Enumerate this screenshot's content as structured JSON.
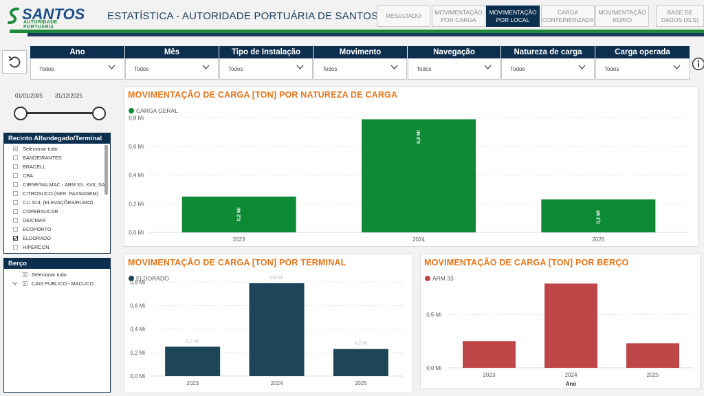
{
  "header": {
    "logo_text": "SANTOS",
    "logo_sub": "AUTORIDADE PORTUÁRIA",
    "title": "ESTATÍSTICA - AUTORIDADE PORTUÁRIA DE SANTOS",
    "nav": [
      {
        "label": "RESULTADO",
        "active": false
      },
      {
        "label": "MOVIMENTAÇÃO POR CARGA",
        "active": false
      },
      {
        "label": "MOVIMENTAÇÃO POR LOCAL",
        "active": true
      },
      {
        "label": "CARGA CONTEINERIZADA",
        "active": false
      },
      {
        "label": "MOVIMENTAÇÃO RO/RO",
        "active": false
      },
      {
        "label": "BASE DE DADOS (XLS)",
        "active": false
      }
    ]
  },
  "filters": [
    {
      "label": "Ano",
      "value": "Todos"
    },
    {
      "label": "Mês",
      "value": "Todos"
    },
    {
      "label": "Tipo de Instalação",
      "value": "Todos"
    },
    {
      "label": "Movimento",
      "value": "Todos"
    },
    {
      "label": "Navegação",
      "value": "Todos"
    },
    {
      "label": "Natureza de carga",
      "value": "Todos"
    },
    {
      "label": "Carga operada",
      "value": "Todos"
    }
  ],
  "date_range": {
    "start": "01/01/2005",
    "end": "31/12/2025"
  },
  "terminal_list": {
    "title": "Recinto Alfandegado/Terminal",
    "items": [
      {
        "label": "Selecionar tudo",
        "state": "partial"
      },
      {
        "label": "BANDEIRANTES",
        "state": "unchecked"
      },
      {
        "label": "BRACELL",
        "state": "unchecked"
      },
      {
        "label": "CBA",
        "state": "unchecked"
      },
      {
        "label": "CIRNE/SALMAC - ARM XII, XVII, SA",
        "state": "unchecked"
      },
      {
        "label": "CITROSUCO (SER. PASSAGEM)",
        "state": "unchecked"
      },
      {
        "label": "CLI SUL (ELEVAÇÕES/RUMO)",
        "state": "unchecked"
      },
      {
        "label": "COPERSUCAR",
        "state": "unchecked"
      },
      {
        "label": "DEICMAR",
        "state": "unchecked"
      },
      {
        "label": "ECOPORTO",
        "state": "unchecked"
      },
      {
        "label": "ELDORADO",
        "state": "checked"
      },
      {
        "label": "HIPERCON",
        "state": "unchecked"
      }
    ]
  },
  "berco_list": {
    "title": "Berço",
    "items": [
      {
        "label": "Selecionar tudo",
        "state": "partial",
        "expand": false
      },
      {
        "label": "CAIS PÚBLICO - MACUCO",
        "state": "partial",
        "expand": true
      }
    ]
  },
  "charts": {
    "natureza": {
      "title": "MOVIMENTAÇÃO DE CARGA [TON] POR NATUREZA DE CARGA",
      "legend": "CARGA GERAL",
      "color": "#0f8a34"
    },
    "terminal": {
      "title": "MOVIMENTAÇÃO DE CARGA [TON] POR TERMINAL",
      "legend": "ELDORADO",
      "color": "#1d4659"
    },
    "berco": {
      "title": "MOVIMENTAÇÃO DE CARGA [TON] POR BERÇO",
      "legend": "ARM 33",
      "color": "#bf4646"
    }
  },
  "chart_data": [
    {
      "type": "bar",
      "title": "MOVIMENTAÇÃO DE CARGA [TON] POR NATUREZA DE CARGA",
      "categories": [
        "2023",
        "2024",
        "2025"
      ],
      "series": [
        {
          "name": "CARGA GERAL",
          "values": [
            250000,
            790000,
            230000
          ]
        }
      ],
      "data_labels": [
        "0,2 Mi",
        "0,8 Mi",
        "0,2 Mi"
      ],
      "yticks": [
        0,
        200000,
        400000,
        600000,
        800000
      ],
      "ytick_labels": [
        "0,0 Mi",
        "0,2 Mi",
        "0,4 Mi",
        "0,6 Mi",
        "0,8 Mi"
      ],
      "ylim": [
        0,
        850000
      ],
      "xlabel": "",
      "legend": "top-left"
    },
    {
      "type": "bar",
      "title": "MOVIMENTAÇÃO DE CARGA [TON] POR TERMINAL",
      "categories": [
        "2023",
        "2024",
        "2025"
      ],
      "series": [
        {
          "name": "ELDORADO",
          "values": [
            250000,
            790000,
            230000
          ]
        }
      ],
      "data_labels": [
        "0,2 Mi",
        "0,8 Mi",
        "0,2 Mi"
      ],
      "yticks": [
        0,
        200000,
        400000,
        600000,
        800000
      ],
      "ytick_labels": [
        "0,0 Mi",
        "0,2 Mi",
        "0,4 Mi",
        "0,6 Mi",
        "0,8 Mi"
      ],
      "ylim": [
        0,
        860000
      ],
      "xlabel": "",
      "legend": "top-left"
    },
    {
      "type": "bar",
      "title": "MOVIMENTAÇÃO DE CARGA [TON] POR BERÇO",
      "categories": [
        "2023",
        "2024",
        "2025"
      ],
      "series": [
        {
          "name": "ARM 33",
          "values": [
            250000,
            790000,
            230000
          ]
        }
      ],
      "data_labels": [],
      "yticks": [
        0,
        500000
      ],
      "ytick_labels": [
        "0,0 Mi",
        "0,5 Mi"
      ],
      "ylim": [
        0,
        870000
      ],
      "xlabel": "Ano",
      "legend": "top-left"
    }
  ]
}
